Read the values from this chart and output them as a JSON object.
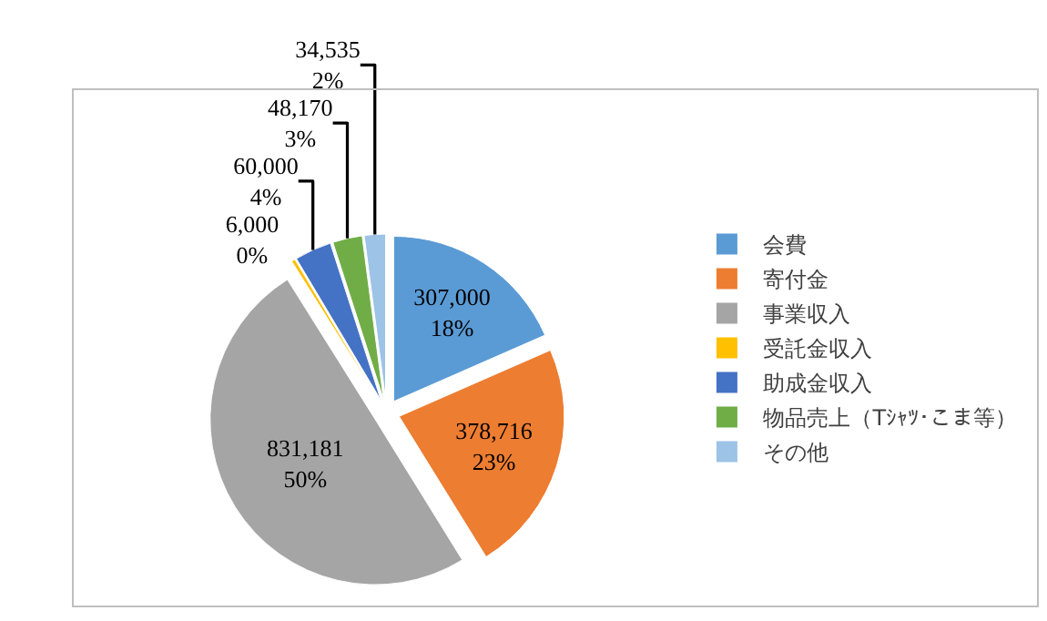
{
  "chart_data": {
    "type": "pie",
    "categories": [
      "会費",
      "寄付金",
      "事業収入",
      "受託金収入",
      "助成金収入",
      "物品売上（Tｼｬﾂ･こま等）",
      "その他"
    ],
    "values": [
      307000,
      378716,
      831181,
      6000,
      60000,
      48170,
      34535
    ],
    "colors": [
      "#5b9bd5",
      "#ed7d31",
      "#a5a5a5",
      "#ffc000",
      "#4472c4",
      "#70ad47",
      "#9dc3e6"
    ],
    "value_labels": [
      "307,000\n18%",
      "378,716\n23%",
      "831,181\n50%",
      "6,000\n0%",
      "60,000\n4%",
      "48,170\n3%",
      "34,535\n2%"
    ],
    "legend": "right"
  }
}
